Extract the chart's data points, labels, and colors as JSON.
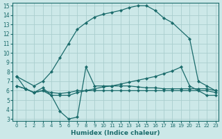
{
  "xlabel": "Humidex (Indice chaleur)",
  "bg_color": "#cce8e8",
  "grid_color": "#aacece",
  "line_color": "#1a6b6b",
  "xlim": [
    -0.5,
    23.3
  ],
  "ylim": [
    2.8,
    15.3
  ],
  "xticks": [
    0,
    1,
    2,
    3,
    4,
    5,
    6,
    7,
    8,
    9,
    10,
    11,
    12,
    13,
    14,
    15,
    16,
    17,
    18,
    19,
    20,
    21,
    22,
    23
  ],
  "yticks": [
    3,
    4,
    5,
    6,
    7,
    8,
    9,
    10,
    11,
    12,
    13,
    14,
    15
  ],
  "series": [
    {
      "x": [
        0,
        2,
        3,
        4,
        5,
        6,
        7,
        8,
        9,
        10,
        11,
        12,
        13,
        14,
        15,
        16,
        17,
        18,
        20,
        21,
        22,
        23
      ],
      "y": [
        7.5,
        6.5,
        7.0,
        8.0,
        9.5,
        11.0,
        12.5,
        13.2,
        13.8,
        14.1,
        14.3,
        14.5,
        14.8,
        15.0,
        15.0,
        14.5,
        13.7,
        13.2,
        11.5,
        7.0,
        6.5,
        6.0
      ]
    },
    {
      "x": [
        0,
        1,
        2,
        3,
        4,
        5,
        6,
        7,
        8,
        9,
        10,
        11,
        12,
        13,
        14,
        15,
        16,
        17,
        18,
        19,
        20,
        21,
        22,
        23
      ],
      "y": [
        7.5,
        6.2,
        5.8,
        6.3,
        5.5,
        3.8,
        3.0,
        3.2,
        8.5,
        6.5,
        6.5,
        6.5,
        6.5,
        6.5,
        6.4,
        6.3,
        6.3,
        6.2,
        6.2,
        6.2,
        6.2,
        6.2,
        6.2,
        6.0
      ]
    },
    {
      "x": [
        0,
        1,
        2,
        3,
        4,
        5,
        6,
        7,
        8,
        9,
        10,
        11,
        12,
        13,
        14,
        15,
        16,
        17,
        18,
        19,
        20,
        21,
        22,
        23
      ],
      "y": [
        6.5,
        6.2,
        5.8,
        6.0,
        5.5,
        5.5,
        5.5,
        5.8,
        6.0,
        6.2,
        6.4,
        6.5,
        6.7,
        6.9,
        7.1,
        7.3,
        7.5,
        7.8,
        8.1,
        8.5,
        6.5,
        6.0,
        5.5,
        5.5
      ]
    },
    {
      "x": [
        0,
        1,
        2,
        3,
        4,
        5,
        6,
        7,
        8,
        9,
        10,
        11,
        12,
        13,
        14,
        15,
        16,
        17,
        18,
        19,
        20,
        21,
        22,
        23
      ],
      "y": [
        6.5,
        6.2,
        5.8,
        6.0,
        5.8,
        5.7,
        5.8,
        6.0,
        6.0,
        6.0,
        6.0,
        6.0,
        6.0,
        6.0,
        6.0,
        6.0,
        6.0,
        6.0,
        6.0,
        6.0,
        6.0,
        6.0,
        6.0,
        5.8
      ]
    }
  ]
}
